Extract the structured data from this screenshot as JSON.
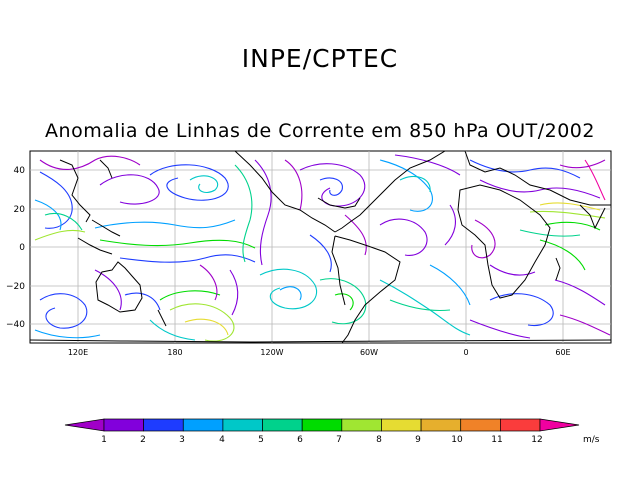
{
  "header": {
    "organization": "INPE/CPTEC",
    "subtitle": "Anomalia de Linhas de Corrente em 850 hPa OUT/2002"
  },
  "map": {
    "lat_ticks": [
      "40",
      "20",
      "0",
      "−20",
      "−40"
    ],
    "lon_ticks": [
      "120E",
      "180",
      "120W",
      "60W",
      "0",
      "60E"
    ],
    "grid": true,
    "colors": {
      "coast": "#000000",
      "grid": "#b8b8b8"
    }
  },
  "legend": {
    "unit": "m/s",
    "ticks": [
      "1",
      "2",
      "3",
      "4",
      "5",
      "6",
      "7",
      "8",
      "9",
      "10",
      "11",
      "12"
    ],
    "colors": [
      "#a000c8",
      "#8200dc",
      "#1e3cff",
      "#00a0ff",
      "#00c8c8",
      "#00d28c",
      "#00dc00",
      "#a0e632",
      "#e6dc32",
      "#e6af2d",
      "#f08228",
      "#fa3c3c",
      "#f000a0"
    ]
  }
}
